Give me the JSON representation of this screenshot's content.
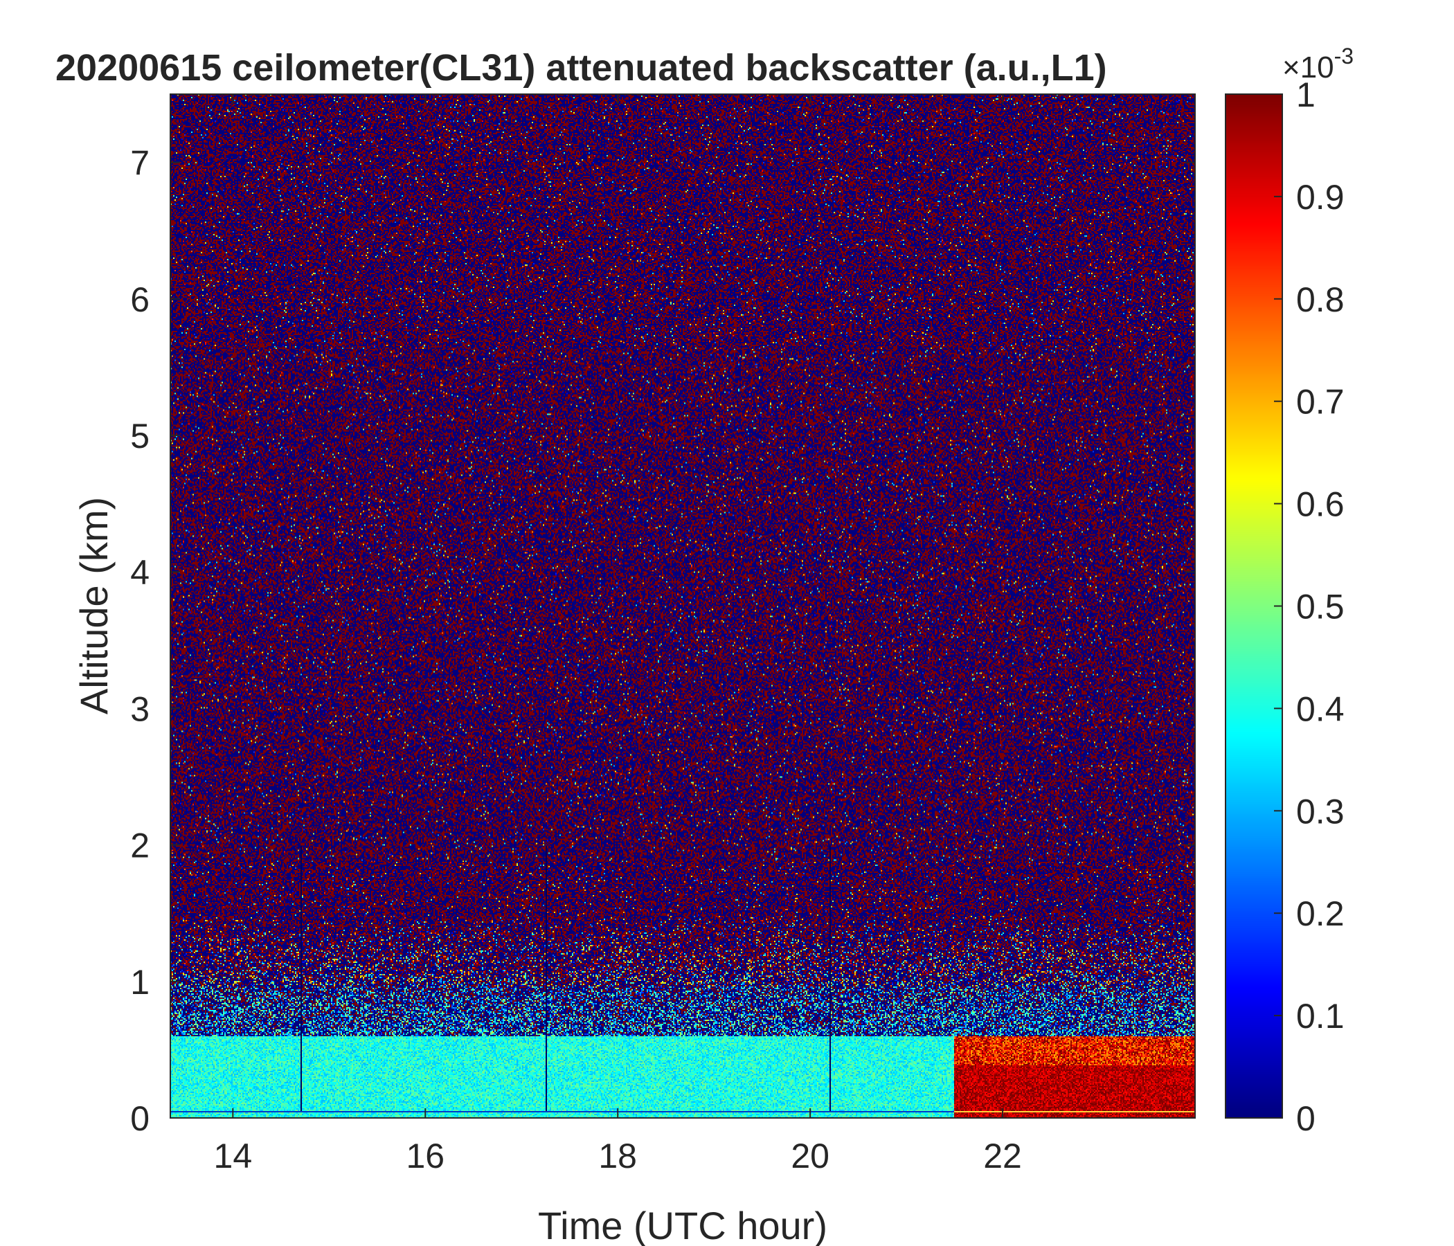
{
  "chart_data": {
    "type": "heatmap",
    "title": "20200615 ceilometer(CL31) attenuated backscatter (a.u.,L1)",
    "xlabel": "Time (UTC hour)",
    "ylabel": "Altitude (km)",
    "xlim": [
      13.35,
      24.0
    ],
    "ylim": [
      0,
      7.5
    ],
    "xticks": [
      14,
      16,
      18,
      20,
      22
    ],
    "xtick_labels": [
      "14",
      "16",
      "18",
      "20",
      "22"
    ],
    "yticks": [
      0,
      1,
      2,
      3,
      4,
      5,
      6,
      7
    ],
    "ytick_labels": [
      "0",
      "1",
      "2",
      "3",
      "4",
      "5",
      "6",
      "7"
    ],
    "colorbar": {
      "colormap": "jet",
      "clim": [
        0,
        1
      ],
      "ticks": [
        0,
        0.1,
        0.2,
        0.3,
        0.4,
        0.5,
        0.6,
        0.7,
        0.8,
        0.9,
        1
      ],
      "tick_labels": [
        "0",
        "0.1",
        "0.2",
        "0.3",
        "0.4",
        "0.5",
        "0.6",
        "0.7",
        "0.8",
        "0.9",
        "1"
      ],
      "exponent_label_base": "×10",
      "exponent_label_power": "-3"
    },
    "features": [
      {
        "type": "noise_background",
        "altitude_range_km": [
          1.5,
          7.5
        ],
        "description": "saturated noise alternating min/max"
      },
      {
        "type": "boundary_layer",
        "time_range": [
          13.35,
          21.5
        ],
        "altitude_range_km": [
          0,
          0.6
        ],
        "value_approx": 0.4
      },
      {
        "type": "aerosol_layer",
        "time_range": [
          21.5,
          24.0
        ],
        "altitude_range_km": [
          0,
          0.6
        ],
        "value_approx": 0.95
      },
      {
        "type": "vertical_line",
        "time": 14.7
      },
      {
        "type": "vertical_line",
        "time": 17.25
      },
      {
        "type": "vertical_line",
        "time": 20.2
      },
      {
        "type": "near_surface_line",
        "altitude_km": 0.05
      }
    ],
    "grid": false
  }
}
